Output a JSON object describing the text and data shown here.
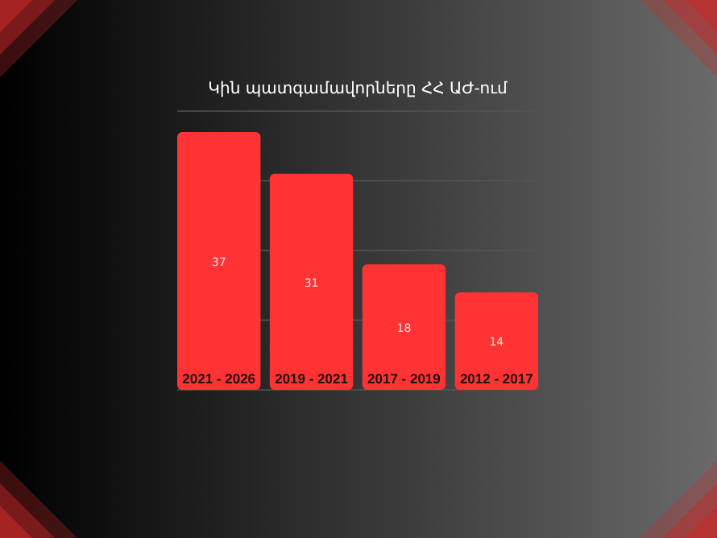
{
  "chart_data": {
    "type": "bar",
    "title": "Կին պատգամավորները ՀՀ ԱԺ-ում",
    "categories": [
      "2021 - 2026",
      "2019 - 2021",
      "2017 - 2019",
      "2012 - 2017"
    ],
    "values": [
      37,
      31,
      18,
      14
    ],
    "color": "#ff3333",
    "ylim": [
      0,
      40
    ],
    "yticks": [
      {
        "value": 0,
        "label": null
      },
      {
        "value": 10,
        "label": null
      },
      {
        "value": 20,
        "label": null
      },
      {
        "value": 30,
        "label": null
      },
      {
        "value": 40,
        "label": null
      }
    ],
    "grid": "y",
    "tick_labels": "x",
    "data_labels": true
  }
}
